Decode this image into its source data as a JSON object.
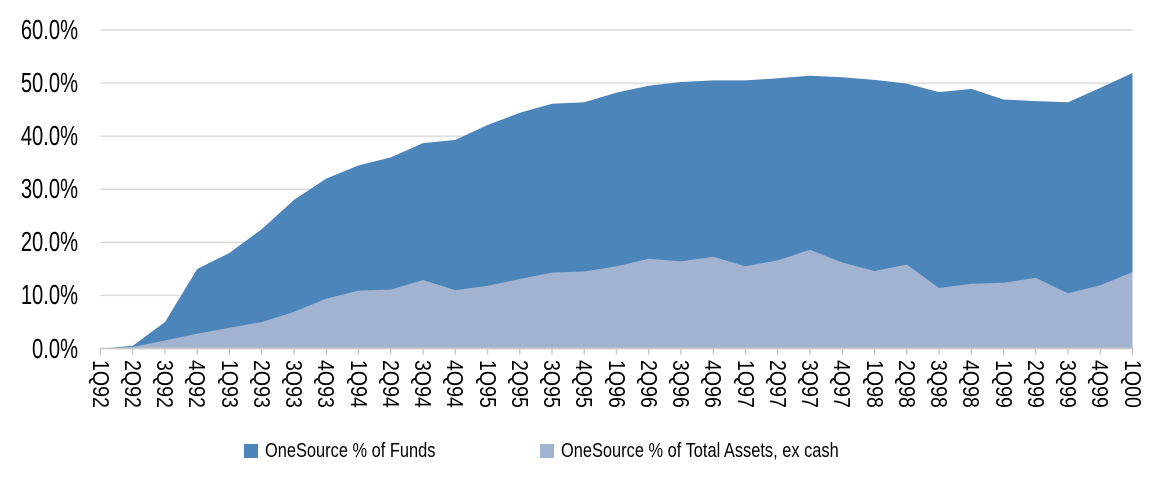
{
  "chart_data": {
    "type": "area",
    "variant": "overlapping",
    "title": "",
    "xlabel": "",
    "ylabel": "",
    "categories": [
      "1Q92",
      "2Q92",
      "3Q92",
      "4Q92",
      "1Q93",
      "2Q93",
      "3Q93",
      "4Q93",
      "1Q94",
      "2Q94",
      "3Q94",
      "4Q94",
      "1Q95",
      "2Q95",
      "3Q95",
      "4Q95",
      "1Q96",
      "2Q96",
      "3Q96",
      "4Q96",
      "1Q97",
      "2Q97",
      "3Q97",
      "4Q97",
      "1Q98",
      "2Q98",
      "3Q98",
      "4Q98",
      "1Q99",
      "2Q99",
      "3Q99",
      "4Q99",
      "1Q00"
    ],
    "series": [
      {
        "name": "OneSource % of Funds",
        "color": "#4C85B9",
        "values": [
          0,
          0.5,
          5.0,
          15.0,
          18.0,
          22.5,
          28.0,
          32.0,
          34.5,
          36.0,
          38.7,
          39.3,
          42.1,
          44.4,
          46.1,
          46.4,
          48.2,
          49.5,
          50.2,
          50.5,
          50.5,
          50.9,
          51.4,
          51.1,
          50.6,
          49.9,
          48.3,
          48.9,
          46.9,
          46.6,
          46.4,
          49.1,
          51.9
        ]
      },
      {
        "name": "OneSource % of Total Assets, ex cash",
        "color": "#A1B3D1",
        "values": [
          0,
          0.3,
          1.5,
          2.8,
          3.9,
          5.0,
          6.9,
          9.4,
          10.9,
          11.1,
          12.9,
          11.0,
          11.8,
          13.1,
          14.3,
          14.5,
          15.5,
          16.9,
          16.4,
          17.3,
          15.5,
          16.6,
          18.6,
          16.2,
          14.6,
          15.8,
          11.4,
          12.2,
          12.4,
          13.3,
          10.4,
          11.9,
          14.4
        ]
      }
    ],
    "ylim": [
      0,
      60
    ],
    "ytick_values": [
      0,
      10,
      20,
      30,
      40,
      50,
      60
    ],
    "ytick_labels": [
      "0.0%",
      "10.0%",
      "20.0%",
      "30.0%",
      "40.0%",
      "50.0%",
      "60.0%"
    ],
    "grid": true,
    "legend_position": "bottom",
    "gridline_color": "#D9D9D9",
    "axis_color": "#C9C9C9",
    "text_color": "#000000",
    "background_color": "#FFFFFF"
  }
}
